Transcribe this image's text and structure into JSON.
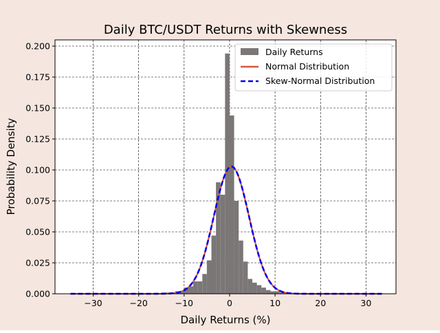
{
  "figure": {
    "background": "#f5e6df"
  },
  "chart_data": {
    "type": "histogram",
    "title": "Daily BTC/USDT Returns with Skewness",
    "xlabel": "Daily Returns (%)",
    "ylabel": "Probability Density",
    "xlim": [
      -38.4,
      36.6
    ],
    "ylim": [
      0,
      0.205
    ],
    "xticks": [
      -30,
      -20,
      -10,
      0,
      10,
      20,
      30
    ],
    "xtick_labels": [
      "−30",
      "−20",
      "−10",
      "0",
      "10",
      "20",
      "30"
    ],
    "yticks": [
      0,
      0.025,
      0.05,
      0.075,
      0.1,
      0.125,
      0.15,
      0.175,
      0.2
    ],
    "ytick_labels": [
      "0.000",
      "0.025",
      "0.050",
      "0.075",
      "0.100",
      "0.125",
      "0.150",
      "0.175",
      "0.200"
    ],
    "grid": true,
    "legend_position": "top-right",
    "histogram": {
      "name": "Daily Returns",
      "color": "#7b7777",
      "bin_width": 1,
      "bins": [
        {
          "x0": -15,
          "value": 0.001
        },
        {
          "x0": -14,
          "value": 0.001
        },
        {
          "x0": -13,
          "value": 0.001
        },
        {
          "x0": -12,
          "value": 0.002
        },
        {
          "x0": -11,
          "value": 0.002
        },
        {
          "x0": -10,
          "value": 0.005
        },
        {
          "x0": -9,
          "value": 0.006
        },
        {
          "x0": -8,
          "value": 0.01
        },
        {
          "x0": -7,
          "value": 0.01
        },
        {
          "x0": -6,
          "value": 0.016
        },
        {
          "x0": -5,
          "value": 0.027
        },
        {
          "x0": -4,
          "value": 0.047
        },
        {
          "x0": -3,
          "value": 0.09
        },
        {
          "x0": -2,
          "value": 0.08
        },
        {
          "x0": -1,
          "value": 0.194
        },
        {
          "x0": 0,
          "value": 0.144
        },
        {
          "x0": 1,
          "value": 0.075
        },
        {
          "x0": 2,
          "value": 0.043
        },
        {
          "x0": 3,
          "value": 0.026
        },
        {
          "x0": 4,
          "value": 0.012
        },
        {
          "x0": 5,
          "value": 0.009
        },
        {
          "x0": 6,
          "value": 0.007
        },
        {
          "x0": 7,
          "value": 0.005
        },
        {
          "x0": 8,
          "value": 0.003
        },
        {
          "x0": 9,
          "value": 0.002
        },
        {
          "x0": 10,
          "value": 0.002
        },
        {
          "x0": 11,
          "value": 0.001
        },
        {
          "x0": 12,
          "value": 0.001
        }
      ]
    },
    "series": [
      {
        "name": "Normal Distribution",
        "color": "#d9553a",
        "style": "solid",
        "distribution": "normal",
        "mean": 0.4,
        "std": 3.88
      },
      {
        "name": "Skew-Normal Distribution",
        "color": "#0000ee",
        "style": "dashed",
        "distribution": "normal",
        "mean": 0.4,
        "std": 3.88
      }
    ],
    "curve_x_range": [
      -35,
      33.5
    ]
  }
}
